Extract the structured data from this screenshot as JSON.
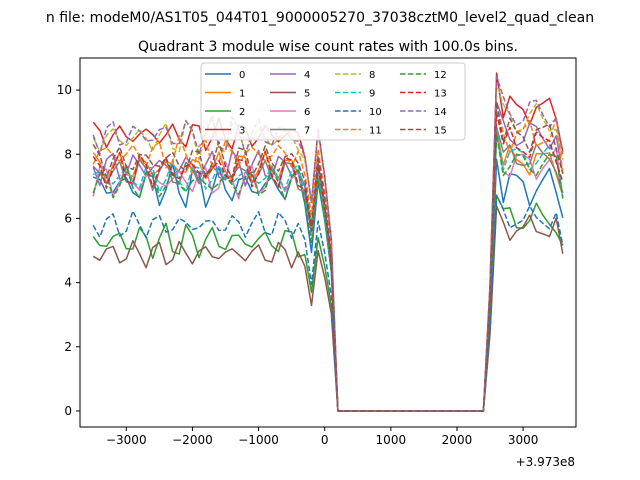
{
  "figure": {
    "suptitle": "n file: modeM0/AS1T05_044T01_9000005270_37038cztM0_level2_quad_clean"
  },
  "chart_data": {
    "type": "line",
    "title": "Quadrant 3 module wise count rates with 100.0s bins.",
    "xlabel": "",
    "ylabel": "",
    "x_offset_label": "+3.973e8",
    "xlim": [
      -3700,
      3800
    ],
    "ylim": [
      -0.5,
      11.0
    ],
    "xticks": [
      -3000,
      -2000,
      -1000,
      0,
      1000,
      2000,
      3000
    ],
    "xtick_labels": [
      "−3000",
      "−2000",
      "−1000",
      "0",
      "1000",
      "2000",
      "3000"
    ],
    "yticks": [
      0,
      2,
      4,
      6,
      8,
      10
    ],
    "ytick_labels": [
      "0",
      "2",
      "4",
      "6",
      "8",
      "10"
    ],
    "grid": false,
    "legend": {
      "placement": "top-center",
      "columns": 4
    },
    "x_sampling": {
      "first": -3500,
      "step": 100,
      "count": 72
    },
    "series": [
      {
        "name": "0",
        "color": "#1f77b4",
        "dash": "solid",
        "pre": 7.0,
        "post": 7.0,
        "amp": 0.5,
        "phase": 0.3,
        "dip_frac": 0.83
      },
      {
        "name": "1",
        "color": "#ff7f0e",
        "dash": "solid",
        "pre": 7.6,
        "post": 7.8,
        "amp": 0.35,
        "phase": 1.1,
        "dip_frac": 0.9
      },
      {
        "name": "2",
        "color": "#2ca02c",
        "dash": "solid",
        "pre": 5.3,
        "post": 6.0,
        "amp": 0.4,
        "phase": 2.2,
        "dip_frac": 0.82
      },
      {
        "name": "3",
        "color": "#d62728",
        "dash": "solid",
        "pre": 8.6,
        "post": 9.4,
        "amp": 0.35,
        "phase": 0.7,
        "dip_frac": 0.89
      },
      {
        "name": "4",
        "color": "#9467bd",
        "dash": "solid",
        "pre": 7.6,
        "post": 8.6,
        "amp": 0.4,
        "phase": 3.1,
        "dip_frac": 0.88
      },
      {
        "name": "5",
        "color": "#8c564b",
        "dash": "solid",
        "pre": 4.9,
        "post": 5.7,
        "amp": 0.3,
        "phase": 4.0,
        "dip_frac": 0.79
      },
      {
        "name": "6",
        "color": "#e377c2",
        "dash": "solid",
        "pre": 7.2,
        "post": 7.7,
        "amp": 0.4,
        "phase": 5.2,
        "dip_frac": 0.9
      },
      {
        "name": "7",
        "color": "#7f7f7f",
        "dash": "solid",
        "pre": 7.4,
        "post": 7.9,
        "amp": 0.35,
        "phase": 1.9,
        "dip_frac": 0.9
      },
      {
        "name": "8",
        "color": "#bcbd22",
        "dash": "dashed",
        "pre": 8.5,
        "post": 9.1,
        "amp": 0.45,
        "phase": 2.6,
        "dip_frac": 0.9
      },
      {
        "name": "9",
        "color": "#17becf",
        "dash": "dashed",
        "pre": 7.3,
        "post": 7.9,
        "amp": 0.35,
        "phase": 0.1,
        "dip_frac": 0.9
      },
      {
        "name": "10",
        "color": "#1f77b4",
        "dash": "dashed",
        "pre": 5.8,
        "post": 6.0,
        "amp": 0.3,
        "phase": 3.6,
        "dip_frac": 0.8
      },
      {
        "name": "11",
        "color": "#ff7f0e",
        "dash": "dashed",
        "pre": 8.0,
        "post": 8.6,
        "amp": 0.4,
        "phase": 4.5,
        "dip_frac": 0.9
      },
      {
        "name": "12",
        "color": "#2ca02c",
        "dash": "dashed",
        "pre": 7.1,
        "post": 7.7,
        "amp": 0.35,
        "phase": 5.8,
        "dip_frac": 0.87
      },
      {
        "name": "13",
        "color": "#d62728",
        "dash": "dashed",
        "pre": 7.5,
        "post": 8.3,
        "amp": 0.4,
        "phase": 1.5,
        "dip_frac": 0.88
      },
      {
        "name": "14",
        "color": "#9467bd",
        "dash": "dashed",
        "pre": 8.6,
        "post": 9.3,
        "amp": 0.45,
        "phase": 2.9,
        "dip_frac": 0.89
      },
      {
        "name": "15",
        "color": "#8c564b",
        "dash": "dashed",
        "pre": 7.8,
        "post": 8.6,
        "amp": 0.4,
        "phase": 0.9,
        "dip_frac": 0.87
      }
    ]
  }
}
